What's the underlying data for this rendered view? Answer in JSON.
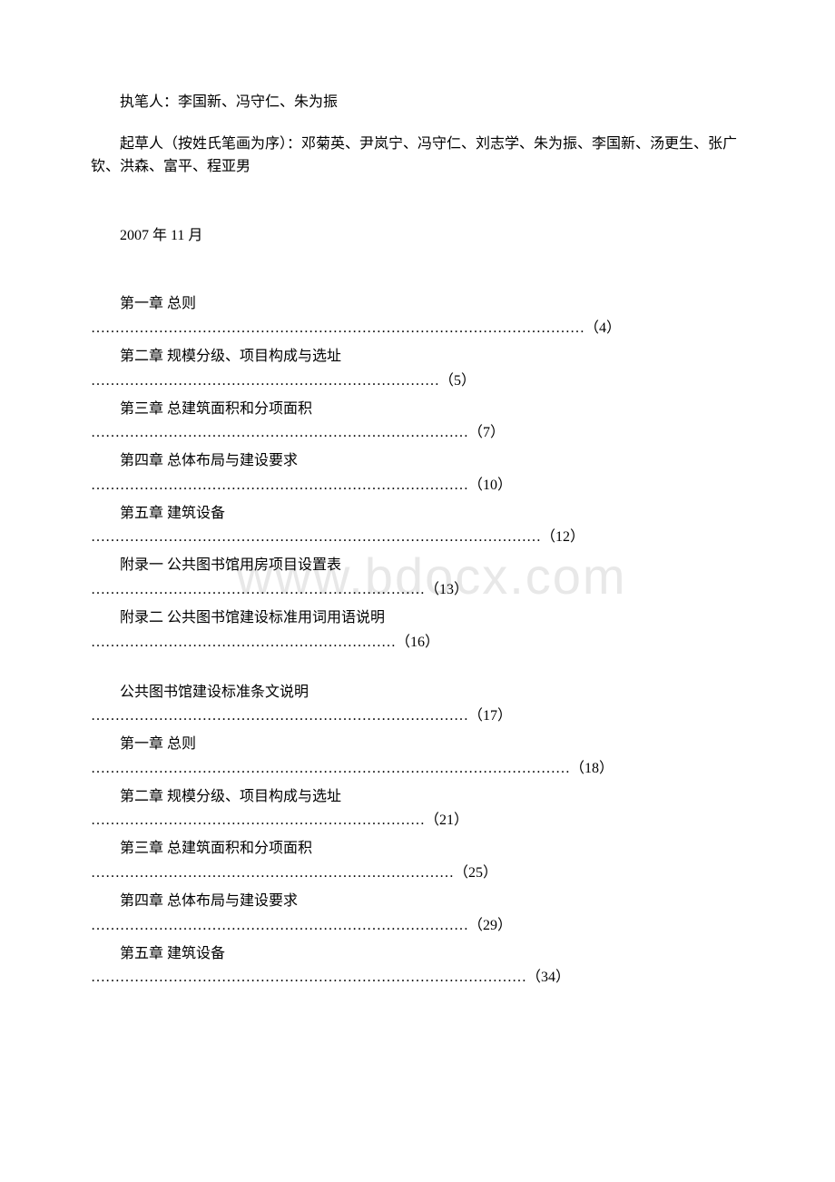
{
  "authors_label": "执笔人：李国新、冯守仁、朱为振",
  "contributors": "起草人（按姓氏笔画为序）：邓菊英、尹岚宁、冯守仁、刘志学、朱为振、李国新、汤更生、张广钦、洪森、富平、程亚男",
  "date": "2007 年 11 月",
  "watermark": "www.bdocx.com",
  "toc_entries": [
    {
      "title": "第一章 总则",
      "dots": "…………………………………………………………………………………………（4）"
    },
    {
      "title": "第二章 规模分级、项目构成与选址",
      "dots": "………………………………………………………………（5）"
    },
    {
      "title": "第三章 总建筑面积和分项面积",
      "dots": "……………………………………………………………………（7）"
    },
    {
      "title": "第四章 总体布局与建设要求",
      "dots": "……………………………………………………………………（10）"
    },
    {
      "title": "第五章 建筑设备",
      "dots": "…………………………………………………………………………………（12）"
    },
    {
      "title": "附录一 公共图书馆用房项目设置表",
      "dots": "……………………………………………………………（13）"
    },
    {
      "title": "附录二 公共图书馆建设标准用词用语说明",
      "dots": "………………………………………………………（16）"
    }
  ],
  "toc_entries_2": [
    {
      "title": "公共图书馆建设标准条文说明",
      "dots": "……………………………………………………………………（17）"
    },
    {
      "title": "第一章 总则",
      "dots": "………………………………………………………………………………………（18）"
    },
    {
      "title": "第二章 规模分级、项目构成与选址",
      "dots": "……………………………………………………………（21）"
    },
    {
      "title": "第三章 总建筑面积和分项面积",
      "dots": "…………………………………………………………………（25）"
    },
    {
      "title": "第四章 总体布局与建设要求",
      "dots": "……………………………………………………………………（29）"
    },
    {
      "title": "第五章 建筑设备",
      "dots": "………………………………………………………………………………（34）"
    }
  ]
}
